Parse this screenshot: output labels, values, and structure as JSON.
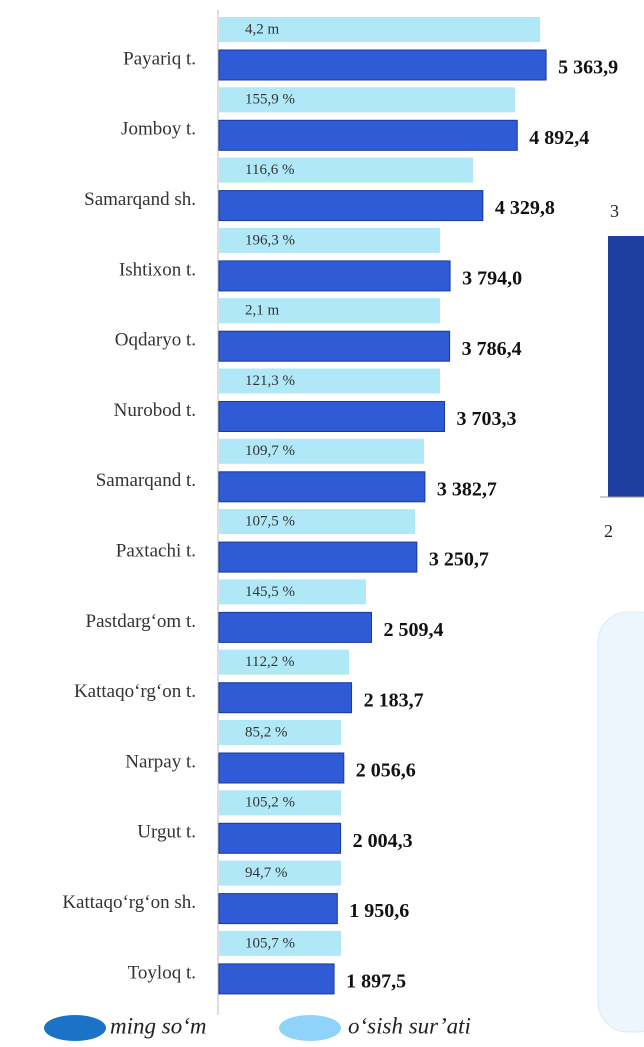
{
  "chart_data": {
    "type": "hbar",
    "categories": [
      "Payariq t.",
      "Jomboy t.",
      "Samarqand sh.",
      "Ishtixon t.",
      "Oqdaryo t.",
      "Nurobod t.",
      "Samarqand t.",
      "Paxtachi t.",
      "Pastdarg‘om t.",
      "Kattaqo‘rg‘on t.",
      "Narpay t.",
      "Urgut t.",
      "Kattaqo‘rg‘on sh.",
      "Toyloq t."
    ],
    "xlim": [
      0,
      6000
    ],
    "series": [
      {
        "name": "o‘sish sur’ati",
        "color": "#b0e8f8",
        "legend_color": "#8fd3fb",
        "values": [
          5266,
          4857,
          4170,
          3630,
          3630,
          3630,
          3369,
          3222,
          2420,
          2142,
          2011,
          2011,
          2011,
          2011
        ],
        "labels": [
          "4,2 m",
          "155,9 %",
          "116,6 %",
          "196,3 %",
          "2,1 m",
          "121,3 %",
          "109,7 %",
          "107,5 %",
          "145,5 %",
          "112,2 %",
          "85,2 %",
          "105,2 %",
          "94,7 %",
          "105,7 %"
        ]
      },
      {
        "name": "ming so‘m",
        "color": "#2f5bd6",
        "legend_color": "#1a73c6",
        "values": [
          5363.9,
          4892.4,
          4329.8,
          3794.0,
          3786.4,
          3703.3,
          3382.7,
          3250.7,
          2509.4,
          2183.7,
          2056.6,
          2004.3,
          1950.6,
          1897.5
        ],
        "value_labels": [
          "5 363,9",
          "4 892,4",
          "4 329,8",
          "3 794,0",
          "3 786,4",
          "3 703,3",
          "3 382,7",
          "3 250,7",
          "2 509,4",
          "2 183,7",
          "2 056,6",
          "2 004,3",
          "1 950,6",
          "1 897,5"
        ]
      }
    ]
  },
  "fragments": {
    "top_label": "3",
    "bottom_label": "2"
  }
}
